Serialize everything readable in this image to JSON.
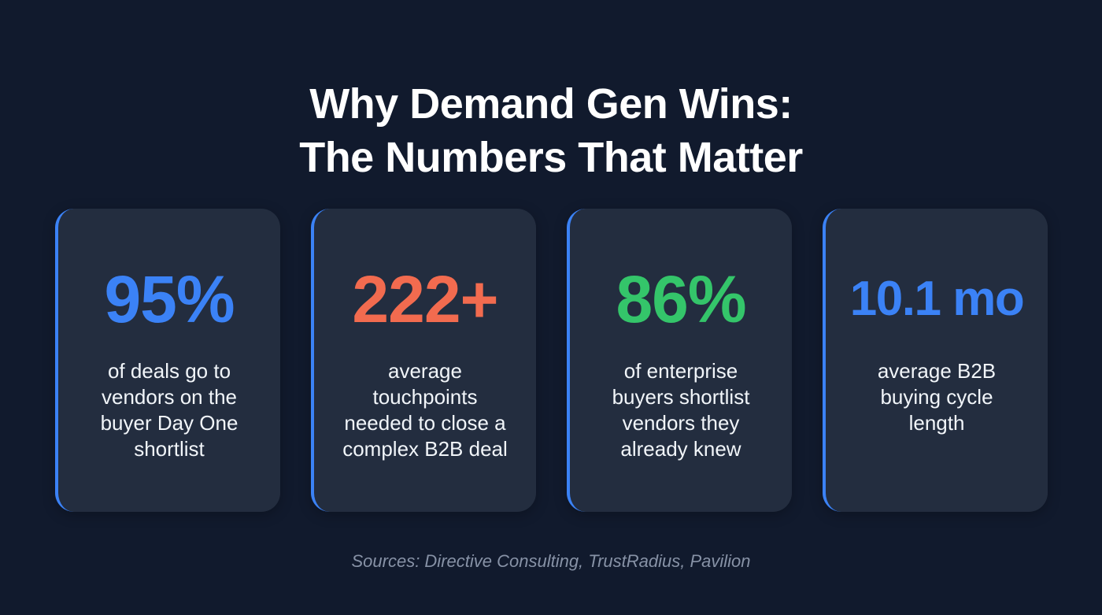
{
  "header": {
    "title_lines": [
      "Why Demand Gen Wins:",
      "The Numbers That Matter"
    ]
  },
  "colors": {
    "background": "#111a2d",
    "card": "#232d3f",
    "accent_border": "#3b82f6",
    "blue": "#3b82f6",
    "orange": "#f26b4f",
    "green": "#34c56a",
    "sources_text": "#8792a6"
  },
  "cards": [
    {
      "stat": "95%",
      "color": "#3b82f6",
      "description_lines": [
        "of deals go to",
        "vendors on the",
        "buyer Day One",
        "shortlist"
      ]
    },
    {
      "stat": "222+",
      "color": "#f26b4f",
      "description_lines": [
        "average",
        "touchpoints",
        "needed to close a",
        "complex B2B deal"
      ]
    },
    {
      "stat": "86%",
      "color": "#34c56a",
      "description_lines": [
        "of enterprise",
        "buyers shortlist",
        "vendors they",
        "already knew"
      ]
    },
    {
      "stat": "10.1 mo",
      "color": "#3b82f6",
      "description_lines": [
        "average B2B",
        "buying cycle",
        "length"
      ]
    }
  ],
  "footer": {
    "sources": "Sources: Directive Consulting, TrustRadius, Pavilion"
  }
}
